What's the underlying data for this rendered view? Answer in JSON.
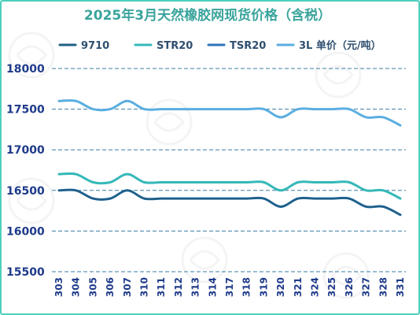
{
  "chart_data": {
    "type": "line",
    "title": "2025年3月天然橡胶网现货价格（含税）",
    "xlabel": "",
    "ylabel": "",
    "categories": [
      "303",
      "304",
      "305",
      "306",
      "307",
      "310",
      "311",
      "312",
      "313",
      "314",
      "317",
      "318",
      "319",
      "320",
      "321",
      "324",
      "325",
      "326",
      "327",
      "328",
      "331"
    ],
    "ylim": [
      15500,
      18000
    ],
    "yticks": [
      15500,
      16000,
      16500,
      17000,
      17500,
      18000
    ],
    "grid": true,
    "legend_position": "top",
    "series": [
      {
        "name": "9710",
        "color": "#1f5f86",
        "values": [
          16500,
          16500,
          16400,
          16400,
          16500,
          16400,
          16400,
          16400,
          16400,
          16400,
          16400,
          16400,
          16400,
          16300,
          16400,
          16400,
          16400,
          16400,
          16300,
          16300,
          16200
        ]
      },
      {
        "name": "STR20",
        "color": "#36b8b8",
        "values": [
          16700,
          16700,
          16600,
          16600,
          16700,
          16600,
          16600,
          16600,
          16600,
          16600,
          16600,
          16600,
          16600,
          16500,
          16600,
          16600,
          16600,
          16600,
          16500,
          16500,
          16400
        ]
      },
      {
        "name": "TSR20",
        "color": "#2b73b8",
        "values": [
          16500,
          16500,
          16400,
          16400,
          16500,
          16400,
          16400,
          16400,
          16400,
          16400,
          16400,
          16400,
          16400,
          16300,
          16400,
          16400,
          16400,
          16400,
          16300,
          16300,
          16200
        ]
      },
      {
        "name": "3L 单价（元/吨）",
        "color": "#5aaee0",
        "values": [
          17600,
          17600,
          17500,
          17500,
          17600,
          17500,
          17500,
          17500,
          17500,
          17500,
          17500,
          17500,
          17500,
          17400,
          17500,
          17500,
          17500,
          17500,
          17400,
          17400,
          17300
        ]
      }
    ]
  }
}
